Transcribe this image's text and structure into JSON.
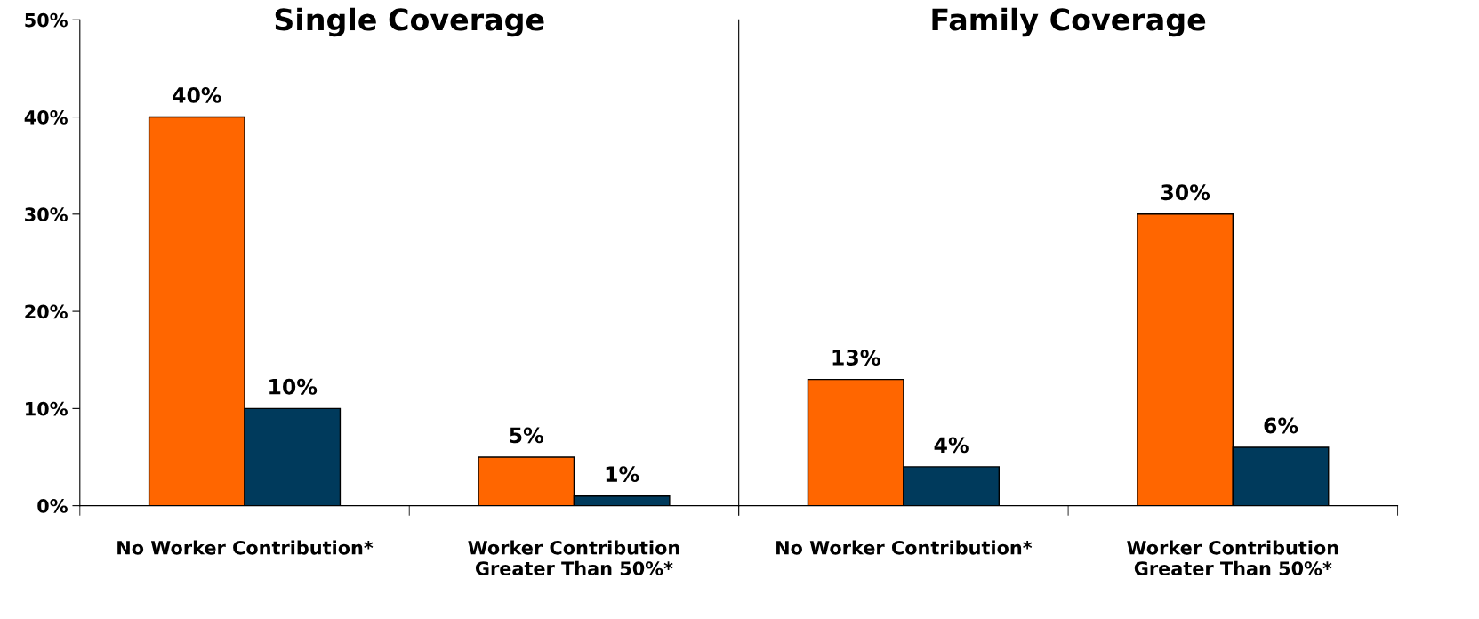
{
  "chart_data": [
    {
      "type": "bar",
      "title": "Single Coverage",
      "categories": [
        "No Worker Contribution*",
        "Worker Contribution\nGreater Than 50%*"
      ],
      "series": [
        {
          "color": "#ff6600",
          "values": [
            40,
            5
          ],
          "value_labels": [
            "40%",
            "5%"
          ]
        },
        {
          "color": "#003a5c",
          "values": [
            10,
            1
          ],
          "value_labels": [
            "10%",
            "1%"
          ]
        }
      ],
      "ylim": [
        0,
        50
      ],
      "yticks": [
        {
          "value": 0,
          "label": "0%"
        },
        {
          "value": 10,
          "label": "10%"
        },
        {
          "value": 20,
          "label": "20%"
        },
        {
          "value": 30,
          "label": "30%"
        },
        {
          "value": 40,
          "label": "40%"
        },
        {
          "value": 50,
          "label": "50%"
        }
      ],
      "grid": false,
      "legend": false
    },
    {
      "type": "bar",
      "title": "Family Coverage",
      "categories": [
        "No Worker Contribution*",
        "Worker Contribution\nGreater Than 50%*"
      ],
      "series": [
        {
          "color": "#ff6600",
          "values": [
            13,
            30
          ],
          "value_labels": [
            "13%",
            "30%"
          ]
        },
        {
          "color": "#003a5c",
          "values": [
            4,
            6
          ],
          "value_labels": [
            "4%",
            "6%"
          ]
        }
      ],
      "ylim": [
        0,
        50
      ],
      "tick_labels": "x",
      "grid": false,
      "legend": false
    }
  ]
}
